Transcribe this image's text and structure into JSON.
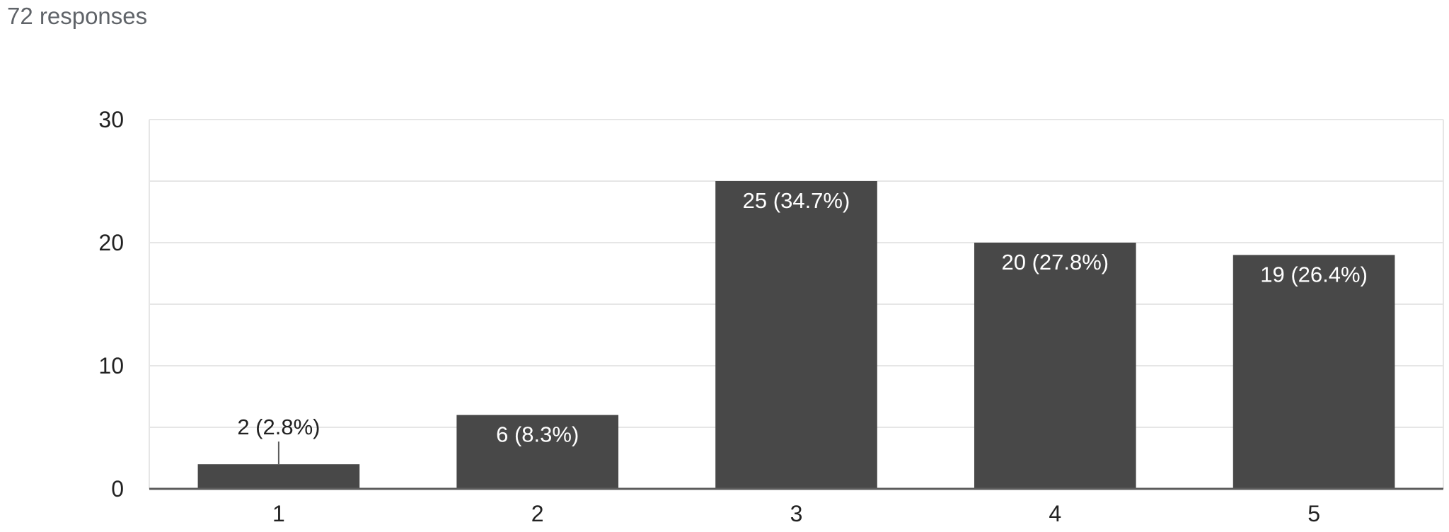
{
  "header": {
    "responses_label": "72 responses"
  },
  "colors": {
    "bar": "#484848",
    "grid": "#e6e6e6",
    "axis": "#5c5c5c",
    "text": "#222222",
    "label_inside": "#ffffff"
  },
  "chart_data": {
    "type": "bar",
    "categories": [
      "1",
      "2",
      "3",
      "4",
      "5"
    ],
    "values": [
      2,
      6,
      25,
      20,
      19
    ],
    "data_labels": [
      "2 (2.8%)",
      "6 (8.3%)",
      "25 (34.7%)",
      "20 (27.8%)",
      "19 (26.4%)"
    ],
    "title": "",
    "xlabel": "",
    "ylabel": "",
    "ylim": [
      0,
      30
    ],
    "yticks": [
      0,
      10,
      20,
      30
    ],
    "grid": true,
    "legend": "none"
  }
}
